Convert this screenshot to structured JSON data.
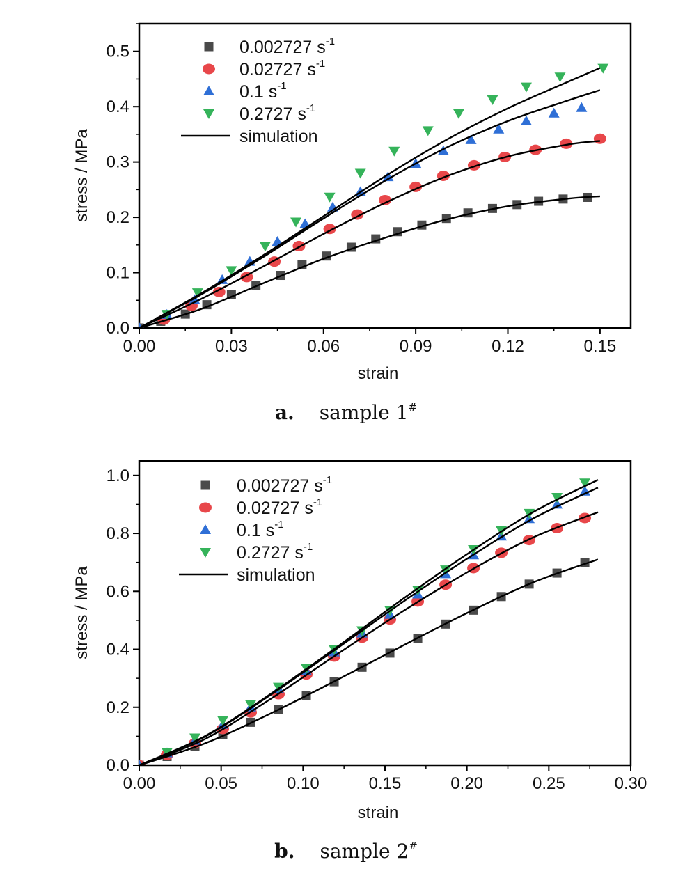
{
  "chart_data": [
    {
      "type": "scatter",
      "caption": {
        "letter": "a.",
        "text": "sample 1",
        "mark": "#"
      },
      "xlabel": "strain",
      "ylabel": "stress / MPa",
      "xlim": [
        0,
        0.16
      ],
      "ylim": [
        0,
        0.55
      ],
      "xticks": [
        0.0,
        0.03,
        0.06,
        0.09,
        0.12,
        0.15
      ],
      "xtick_labels": [
        "0.00",
        "0.03",
        "0.06",
        "0.09",
        "0.12",
        "0.15"
      ],
      "yticks": [
        0.0,
        0.1,
        0.2,
        0.3,
        0.4,
        0.5
      ],
      "ytick_labels": [
        "0.0",
        "0.1",
        "0.2",
        "0.3",
        "0.4",
        "0.5"
      ],
      "legend_position": "top-left",
      "series": [
        {
          "name": "0.002727 s",
          "sup": "-1",
          "marker": "square",
          "color": "#4a4a4a",
          "x": [
            0.0,
            0.007,
            0.015,
            0.022,
            0.03,
            0.038,
            0.046,
            0.053,
            0.061,
            0.069,
            0.077,
            0.084,
            0.092,
            0.1,
            0.107,
            0.115,
            0.123,
            0.13,
            0.138,
            0.146
          ],
          "y": [
            0.0,
            0.012,
            0.025,
            0.042,
            0.06,
            0.077,
            0.095,
            0.114,
            0.13,
            0.146,
            0.161,
            0.174,
            0.186,
            0.198,
            0.208,
            0.216,
            0.223,
            0.229,
            0.233,
            0.236
          ]
        },
        {
          "name": "0.02727 s",
          "sup": "-1",
          "marker": "circle",
          "color": "#e8474a",
          "x": [
            0.008,
            0.017,
            0.026,
            0.035,
            0.044,
            0.052,
            0.062,
            0.071,
            0.08,
            0.09,
            0.099,
            0.109,
            0.119,
            0.129,
            0.139,
            0.15
          ],
          "y": [
            0.015,
            0.04,
            0.065,
            0.092,
            0.12,
            0.148,
            0.179,
            0.205,
            0.231,
            0.255,
            0.275,
            0.294,
            0.309,
            0.322,
            0.333,
            0.342
          ]
        },
        {
          "name": "0.1 s",
          "sup": "-1",
          "marker": "triangle-up",
          "color": "#2f6fd6",
          "x": [
            0.0,
            0.009,
            0.018,
            0.027,
            0.036,
            0.045,
            0.054,
            0.063,
            0.072,
            0.081,
            0.09,
            0.099,
            0.108,
            0.117,
            0.126,
            0.135,
            0.144
          ],
          "y": [
            0.0,
            0.024,
            0.051,
            0.087,
            0.12,
            0.156,
            0.188,
            0.218,
            0.246,
            0.273,
            0.297,
            0.32,
            0.34,
            0.359,
            0.374,
            0.388,
            0.398
          ]
        },
        {
          "name": "0.2727 s",
          "sup": "-1",
          "marker": "triangle-down",
          "color": "#35b35a",
          "x": [
            0.009,
            0.019,
            0.03,
            0.041,
            0.051,
            0.062,
            0.072,
            0.083,
            0.094,
            0.104,
            0.115,
            0.126,
            0.137,
            0.151
          ],
          "y": [
            0.025,
            0.064,
            0.104,
            0.148,
            0.192,
            0.237,
            0.28,
            0.32,
            0.357,
            0.388,
            0.413,
            0.436,
            0.454,
            0.47
          ]
        },
        {
          "name": "simulation",
          "marker": "line",
          "color": "#000000",
          "curves": [
            {
              "x": [
                0.0,
                0.02,
                0.04,
                0.06,
                0.08,
                0.1,
                0.12,
                0.14,
                0.15
              ],
              "y": [
                0.0,
                0.034,
                0.08,
                0.125,
                0.163,
                0.196,
                0.22,
                0.234,
                0.238
              ]
            },
            {
              "x": [
                0.0,
                0.02,
                0.04,
                0.06,
                0.08,
                0.1,
                0.12,
                0.14,
                0.15
              ],
              "y": [
                0.0,
                0.052,
                0.11,
                0.17,
                0.226,
                0.274,
                0.31,
                0.332,
                0.338
              ]
            },
            {
              "x": [
                0.0,
                0.02,
                0.04,
                0.06,
                0.08,
                0.1,
                0.12,
                0.14,
                0.15
              ],
              "y": [
                0.0,
                0.06,
                0.127,
                0.198,
                0.266,
                0.326,
                0.374,
                0.412,
                0.43
              ]
            },
            {
              "x": [
                0.0,
                0.02,
                0.04,
                0.06,
                0.08,
                0.1,
                0.12,
                0.14,
                0.15
              ],
              "y": [
                0.0,
                0.062,
                0.13,
                0.202,
                0.274,
                0.34,
                0.397,
                0.446,
                0.47
              ]
            }
          ]
        }
      ]
    },
    {
      "type": "scatter",
      "caption": {
        "letter": "b.",
        "text": "sample 2",
        "mark": "#"
      },
      "xlabel": "strain",
      "ylabel": "stress / MPa",
      "xlim": [
        0,
        0.3
      ],
      "ylim": [
        0,
        1.05
      ],
      "xticks": [
        0.0,
        0.05,
        0.1,
        0.15,
        0.2,
        0.25,
        0.3
      ],
      "xtick_labels": [
        "0.00",
        "0.05",
        "0.10",
        "0.15",
        "0.20",
        "0.25",
        "0.30"
      ],
      "yticks": [
        0.0,
        0.2,
        0.4,
        0.6,
        0.8,
        1.0
      ],
      "ytick_labels": [
        "0.0",
        "0.2",
        "0.4",
        "0.6",
        "0.8",
        "1.0"
      ],
      "legend_position": "top-left",
      "series": [
        {
          "name": "0.002727 s",
          "sup": "-1",
          "marker": "square",
          "color": "#4a4a4a",
          "x": [
            0.0,
            0.017,
            0.034,
            0.051,
            0.068,
            0.085,
            0.102,
            0.119,
            0.136,
            0.153,
            0.17,
            0.187,
            0.204,
            0.221,
            0.238,
            0.255,
            0.272
          ],
          "y": [
            0.0,
            0.03,
            0.065,
            0.105,
            0.148,
            0.193,
            0.24,
            0.288,
            0.338,
            0.387,
            0.438,
            0.487,
            0.535,
            0.582,
            0.625,
            0.663,
            0.7
          ]
        },
        {
          "name": "0.02727 s",
          "sup": "-1",
          "marker": "circle",
          "color": "#e8474a",
          "x": [
            0.0,
            0.017,
            0.034,
            0.051,
            0.068,
            0.085,
            0.102,
            0.119,
            0.136,
            0.153,
            0.17,
            0.187,
            0.204,
            0.221,
            0.238,
            0.255,
            0.272
          ],
          "y": [
            0.0,
            0.036,
            0.076,
            0.125,
            0.182,
            0.245,
            0.313,
            0.375,
            0.44,
            0.503,
            0.565,
            0.623,
            0.68,
            0.733,
            0.777,
            0.818,
            0.853
          ]
        },
        {
          "name": "0.1 s",
          "sup": "-1",
          "marker": "triangle-up",
          "color": "#2f6fd6",
          "x": [
            0.0,
            0.017,
            0.034,
            0.051,
            0.068,
            0.085,
            0.102,
            0.119,
            0.136,
            0.153,
            0.17,
            0.187,
            0.204,
            0.221,
            0.238,
            0.255,
            0.272
          ],
          "y": [
            0.0,
            0.042,
            0.085,
            0.14,
            0.2,
            0.263,
            0.325,
            0.39,
            0.455,
            0.52,
            0.59,
            0.66,
            0.725,
            0.79,
            0.85,
            0.9,
            0.945
          ]
        },
        {
          "name": "0.2727 s",
          "sup": "-1",
          "marker": "triangle-down",
          "color": "#35b35a",
          "x": [
            0.017,
            0.034,
            0.051,
            0.068,
            0.085,
            0.102,
            0.119,
            0.136,
            0.153,
            0.17,
            0.187,
            0.204,
            0.221,
            0.238,
            0.255,
            0.272
          ],
          "y": [
            0.045,
            0.095,
            0.155,
            0.21,
            0.27,
            0.335,
            0.4,
            0.465,
            0.535,
            0.605,
            0.675,
            0.745,
            0.81,
            0.87,
            0.925,
            0.975
          ]
        },
        {
          "name": "simulation",
          "marker": "line",
          "color": "#000000",
          "curves": [
            {
              "x": [
                0.0,
                0.04,
                0.08,
                0.12,
                0.16,
                0.2,
                0.24,
                0.28
              ],
              "y": [
                0.0,
                0.075,
                0.178,
                0.292,
                0.41,
                0.525,
                0.63,
                0.71
              ]
            },
            {
              "x": [
                0.0,
                0.04,
                0.08,
                0.12,
                0.16,
                0.2,
                0.24,
                0.28
              ],
              "y": [
                0.0,
                0.09,
                0.228,
                0.38,
                0.528,
                0.665,
                0.785,
                0.873
              ]
            },
            {
              "x": [
                0.0,
                0.04,
                0.08,
                0.12,
                0.16,
                0.2,
                0.24,
                0.28
              ],
              "y": [
                0.0,
                0.098,
                0.242,
                0.4,
                0.56,
                0.712,
                0.85,
                0.958
              ]
            },
            {
              "x": [
                0.0,
                0.04,
                0.08,
                0.12,
                0.16,
                0.2,
                0.24,
                0.28
              ],
              "y": [
                0.0,
                0.1,
                0.245,
                0.405,
                0.57,
                0.728,
                0.872,
                0.985
              ]
            }
          ]
        }
      ]
    }
  ]
}
